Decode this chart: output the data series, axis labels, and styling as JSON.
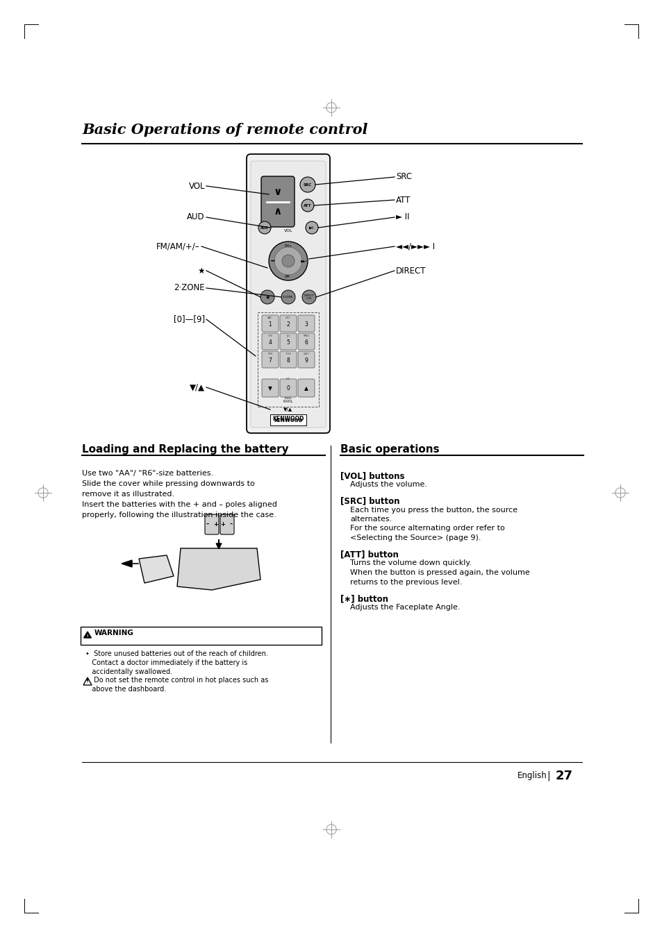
{
  "page_title": "Basic Operations of remote control",
  "title_fontsize": 15,
  "background_color": "#ffffff",
  "section1_title": "Loading and Replacing the battery",
  "section2_title": "Basic operations",
  "body_text_left": [
    "Use two \"AA\"/ \"R6\"-size batteries.",
    "Slide the cover while pressing downwards to",
    "remove it as illustrated.",
    "Insert the batteries with the + and – poles aligned",
    "properly, following the illustration inside the case."
  ],
  "warning_title": "⚠WARNING",
  "warning_texts": [
    "•  Store unused batteries out of the reach of children.",
    "   Contact a doctor immediately if the battery is",
    "   accidentally swallowed."
  ],
  "caution_texts": [
    "•  Do not set the remote control in hot places such as",
    "   above the dashboard."
  ],
  "section2_items": [
    {
      "label": "[VOL] buttons",
      "desc": [
        "Adjusts the volume."
      ]
    },
    {
      "label": "[SRC] button",
      "desc": [
        "Each time you press the button, the source",
        "alternates.",
        "For the source alternating order refer to",
        "<Selecting the Source> (page 9)."
      ]
    },
    {
      "label": "[ATT] button",
      "desc": [
        "Turns the volume down quickly.",
        "When the button is pressed again, the volume",
        "returns to the previous level."
      ]
    },
    {
      "label": "[∗] button",
      "desc": [
        "Adjusts the Faceplate Angle."
      ]
    }
  ],
  "page_number": "27",
  "english_label": "English"
}
